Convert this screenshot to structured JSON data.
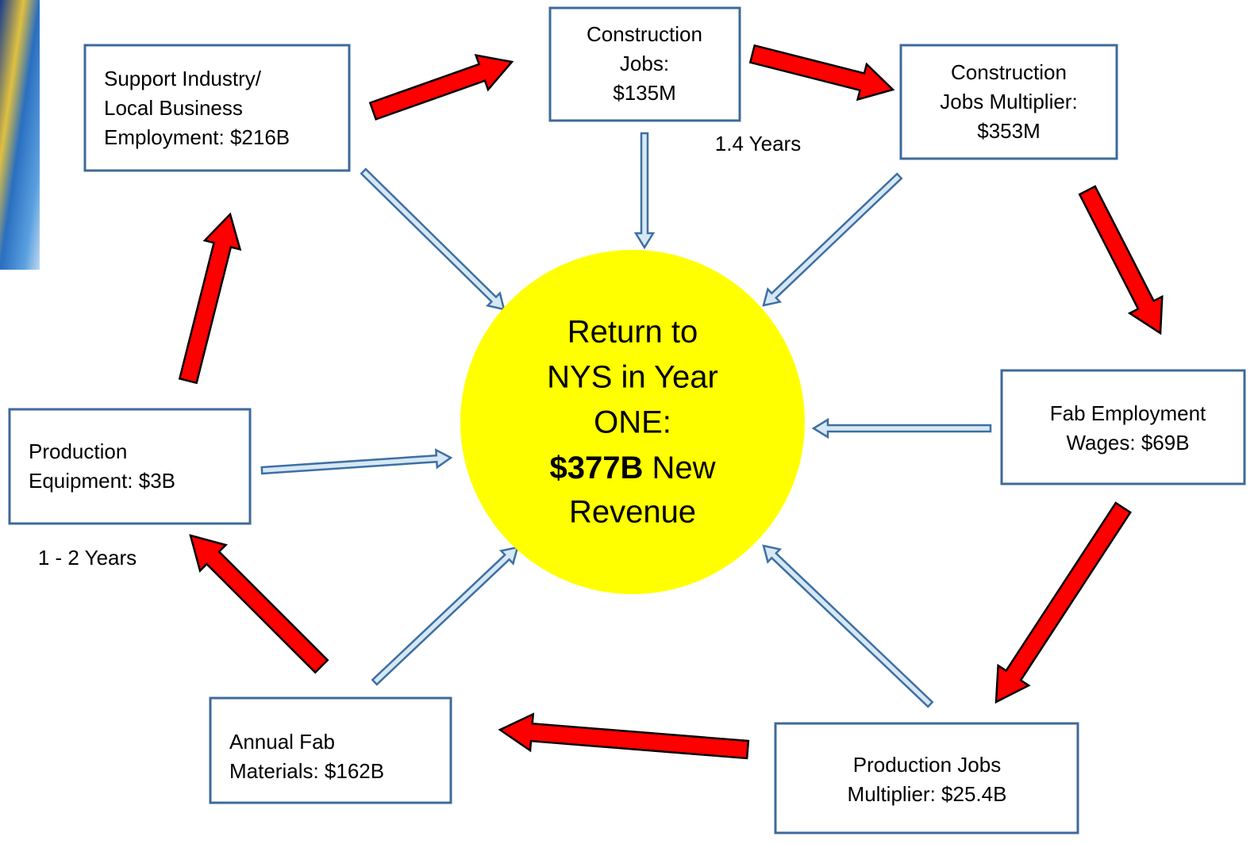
{
  "nodes": [
    {
      "lines": [
        "Support Industry/",
        "Local Business",
        "Employment: $216B"
      ]
    },
    {
      "lines": [
        "Construction",
        "Jobs:",
        "$135M"
      ]
    },
    {
      "lines": [
        "Construction",
        "Jobs Multiplier:",
        "$353M"
      ]
    },
    {
      "lines": [
        "Fab Employment",
        "Wages:  $69B"
      ]
    },
    {
      "lines": [
        "Production Jobs",
        "Multiplier:  $25.4B"
      ]
    },
    {
      "lines": [
        "Annual Fab",
        "Materials: $162B"
      ]
    },
    {
      "lines": [
        "Production",
        "Equipment: $3B"
      ]
    }
  ],
  "center": {
    "lines": [
      "Return to",
      "NYS in Year",
      "ONE:"
    ],
    "amount": "$377B",
    "amount_suffix": "New",
    "last": "Revenue"
  },
  "timings": [
    "1.4 Years",
    "1 - 2 Years"
  ]
}
